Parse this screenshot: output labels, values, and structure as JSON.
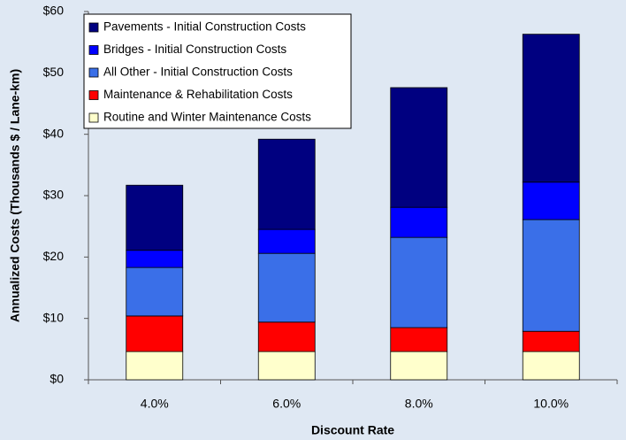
{
  "chart_data": {
    "type": "stacked-bar",
    "x_label": "Discount Rate",
    "y_label": "Annualized Costs (Thousands $ / Lane-km)",
    "categories": [
      "4.0%",
      "6.0%",
      "8.0%",
      "10.0%"
    ],
    "series": [
      {
        "name": "Routine and Winter Maintenance Costs",
        "color": "#ffffcc",
        "values": [
          4.6,
          4.6,
          4.6,
          4.6
        ]
      },
      {
        "name": "Maintenance & Rehabilitation Costs",
        "color": "#ff0000",
        "values": [
          5.8,
          4.8,
          3.9,
          3.3
        ]
      },
      {
        "name": "All Other - Initial Construction Costs",
        "color": "#3a6fe8",
        "values": [
          7.9,
          11.2,
          14.7,
          18.2
        ]
      },
      {
        "name": "Bridges - Initial Construction Costs",
        "color": "#0000ff",
        "values": [
          2.8,
          3.9,
          4.9,
          6.1
        ]
      },
      {
        "name": "Pavements - Initial Construction Costs",
        "color": "#000080",
        "values": [
          10.6,
          14.7,
          19.5,
          24.1
        ]
      }
    ],
    "ylim": [
      0,
      60
    ],
    "yticks": [
      {
        "value": 0,
        "label": "$0"
      },
      {
        "value": 10,
        "label": "$10"
      },
      {
        "value": 20,
        "label": "$20"
      },
      {
        "value": 30,
        "label": "$30"
      },
      {
        "value": 40,
        "label": "$40"
      },
      {
        "value": 50,
        "label": "$50"
      },
      {
        "value": 60,
        "label": "$60"
      }
    ],
    "legend": "upper left"
  }
}
